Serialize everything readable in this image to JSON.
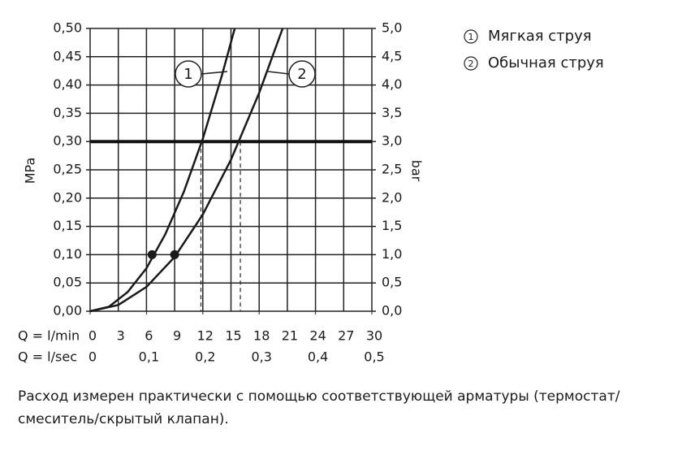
{
  "chart_data": {
    "type": "line",
    "ylabel": "MPa",
    "y2label": "bar",
    "xlabel": "Q = l/min",
    "x2label": "Q = l/sec",
    "xlim": [
      0,
      30
    ],
    "xticks": [
      0,
      3,
      6,
      9,
      12,
      15,
      18,
      21,
      24,
      27,
      30
    ],
    "x2lim": [
      0,
      0.5
    ],
    "x2ticks": [
      0,
      {
        "value": 0.1,
        "label": "0,1"
      },
      {
        "value": 0.2,
        "label": "0,2"
      },
      {
        "value": 0.3,
        "label": "0,3"
      },
      {
        "value": 0.4,
        "label": "0,4"
      },
      {
        "value": 0.5,
        "label": "0,5"
      }
    ],
    "ylim": [
      0,
      0.5
    ],
    "yticks": [
      {
        "value": 0,
        "label": "0,00"
      },
      {
        "value": 0.05,
        "label": "0,05"
      },
      {
        "value": 0.1,
        "label": "0,10"
      },
      {
        "value": 0.15,
        "label": "0,15"
      },
      {
        "value": 0.2,
        "label": "0,20"
      },
      {
        "value": 0.25,
        "label": "0,25"
      },
      {
        "value": 0.3,
        "label": "0,30"
      },
      {
        "value": 0.35,
        "label": "0,35"
      },
      {
        "value": 0.4,
        "label": "0,40"
      },
      {
        "value": 0.45,
        "label": "0,45"
      },
      {
        "value": 0.5,
        "label": "0,50"
      }
    ],
    "y2lim": [
      0,
      5
    ],
    "y2ticks": [
      {
        "value": 0,
        "label": "0,0"
      },
      {
        "value": 0.5,
        "label": "0,5"
      },
      {
        "value": 1,
        "label": "1,0"
      },
      {
        "value": 1.5,
        "label": "1,5"
      },
      {
        "value": 2,
        "label": "2,0"
      },
      {
        "value": 2.5,
        "label": "2,5"
      },
      {
        "value": 3,
        "label": "3,0"
      },
      {
        "value": 3.5,
        "label": "3,5"
      },
      {
        "value": 4,
        "label": "4,0"
      },
      {
        "value": 4.5,
        "label": "4,5"
      },
      {
        "value": 5,
        "label": "5,0"
      }
    ],
    "grid": true,
    "threshold": 0.3,
    "drop_x": [
      11.8,
      16
    ],
    "series": [
      {
        "name": "Мягкая струя",
        "label": "1",
        "color": "#1a1a1a",
        "x": [
          0,
          2,
          4,
          6,
          8,
          10,
          12,
          14,
          15.4
        ],
        "values": [
          0,
          0.008,
          0.034,
          0.076,
          0.136,
          0.212,
          0.305,
          0.415,
          0.5
        ],
        "point": {
          "x": 6.6,
          "y": 0.1
        }
      },
      {
        "name": "Обычная струя",
        "label": "2",
        "color": "#1a1a1a",
        "x": [
          0,
          3,
          6,
          9,
          12,
          15,
          18,
          20.5
        ],
        "values": [
          0,
          0.011,
          0.043,
          0.096,
          0.171,
          0.268,
          0.386,
          0.5
        ],
        "point": {
          "x": 9,
          "y": 0.1
        }
      }
    ],
    "note": [
      "Расход измерен практически с помощью соответствующей арматуры (термостат/",
      "смеситель/скрытый клапан)."
    ]
  }
}
